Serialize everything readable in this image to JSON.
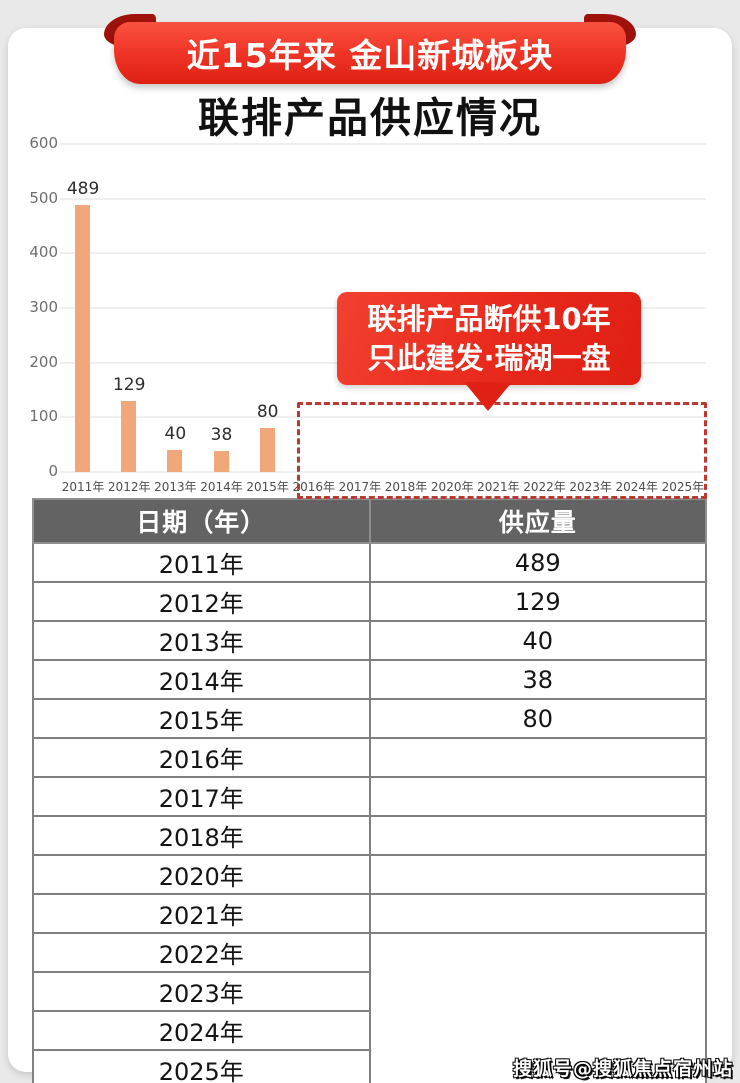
{
  "header": {
    "banner": "近15年来 金山新城板块",
    "title": "联排产品供应情况"
  },
  "callout": {
    "line1": "联排产品断供10年",
    "line2": "只此建发·瑞湖一盘"
  },
  "watermark": {
    "text": "搜狐号@搜狐焦点宿州站"
  },
  "colors": {
    "accent_red": "#e8352b",
    "bar": "#f0a87a",
    "dashed_box": "#ba3931",
    "table_header_bg": "#636363"
  },
  "chart_data": {
    "type": "bar",
    "title": "联排产品供应情况",
    "categories": [
      "2011年",
      "2012年",
      "2013年",
      "2014年",
      "2015年",
      "2016年",
      "2017年",
      "2018年",
      "2020年",
      "2021年",
      "2022年",
      "2023年",
      "2024年",
      "2025年"
    ],
    "values": [
      489,
      129,
      40,
      38,
      80,
      0,
      0,
      0,
      0,
      0,
      0,
      0,
      0,
      0
    ],
    "xlabel": "",
    "ylabel": "",
    "ylim": [
      0,
      600
    ],
    "yticks": [
      0,
      100,
      200,
      300,
      400,
      500,
      600
    ],
    "grid": true,
    "legend": false,
    "bar_color": "#f0a87a",
    "annotation": {
      "line1": "联排产品断供10年",
      "line2": "只此建发·瑞湖一盘",
      "highlight_years": [
        "2016年",
        "2017年",
        "2018年",
        "2020年",
        "2021年",
        "2022年",
        "2023年",
        "2024年",
        "2025年"
      ]
    }
  },
  "table": {
    "columns": [
      "日期（年）",
      "供应量"
    ],
    "rows": [
      {
        "year": "2011年",
        "supply": "489"
      },
      {
        "year": "2012年",
        "supply": "129"
      },
      {
        "year": "2013年",
        "supply": "40"
      },
      {
        "year": "2014年",
        "supply": "38"
      },
      {
        "year": "2015年",
        "supply": "80"
      },
      {
        "year": "2016年",
        "supply": ""
      },
      {
        "year": "2017年",
        "supply": ""
      },
      {
        "year": "2018年",
        "supply": ""
      },
      {
        "year": "2020年",
        "supply": ""
      },
      {
        "year": "2021年",
        "supply": ""
      },
      {
        "year": "2022年",
        "supply": "",
        "rowspan": 4
      },
      {
        "year": "2023年"
      },
      {
        "year": "2024年"
      },
      {
        "year": "2025年"
      }
    ]
  }
}
